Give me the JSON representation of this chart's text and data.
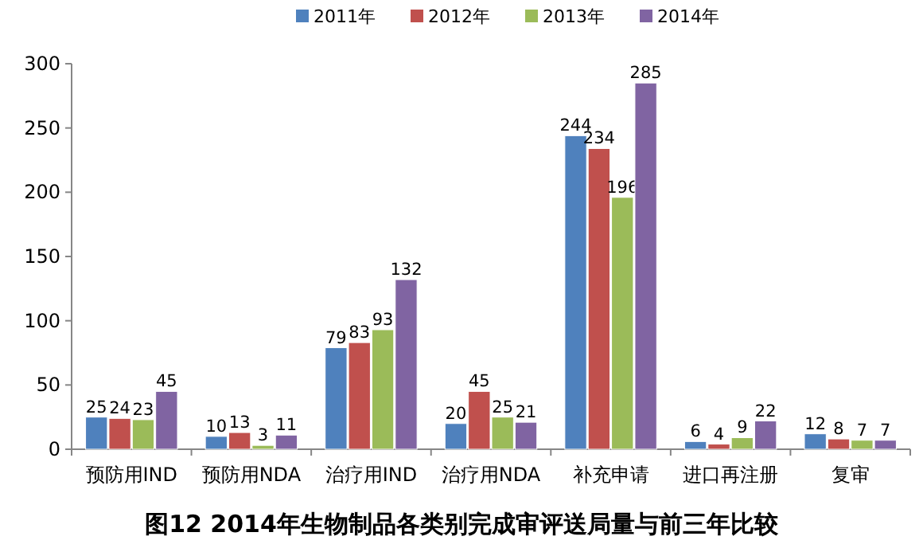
{
  "chart_data": {
    "type": "bar",
    "title": "图12 2014年生物制品各类别完成审评送局量与前三年比较",
    "categories": [
      "预防用IND",
      "预防用NDA",
      "治疗用IND",
      "治疗用NDA",
      "补充申请",
      "进口再注册",
      "复审"
    ],
    "series": [
      {
        "name": "2011年",
        "color": "#4f81bd",
        "values": [
          25,
          10,
          79,
          20,
          244,
          6,
          12
        ]
      },
      {
        "name": "2012年",
        "color": "#c0504d",
        "values": [
          24,
          13,
          83,
          45,
          234,
          4,
          8
        ]
      },
      {
        "name": "2013年",
        "color": "#9bbb59",
        "values": [
          23,
          3,
          93,
          25,
          196,
          9,
          7
        ]
      },
      {
        "name": "2014年",
        "color": "#8064a2",
        "values": [
          45,
          11,
          132,
          21,
          285,
          22,
          7
        ]
      }
    ],
    "ylim": [
      0,
      300
    ],
    "yticks": [
      0,
      50,
      100,
      150,
      200,
      250,
      300
    ],
    "data_labels": true,
    "legend": "top",
    "grid": false
  }
}
